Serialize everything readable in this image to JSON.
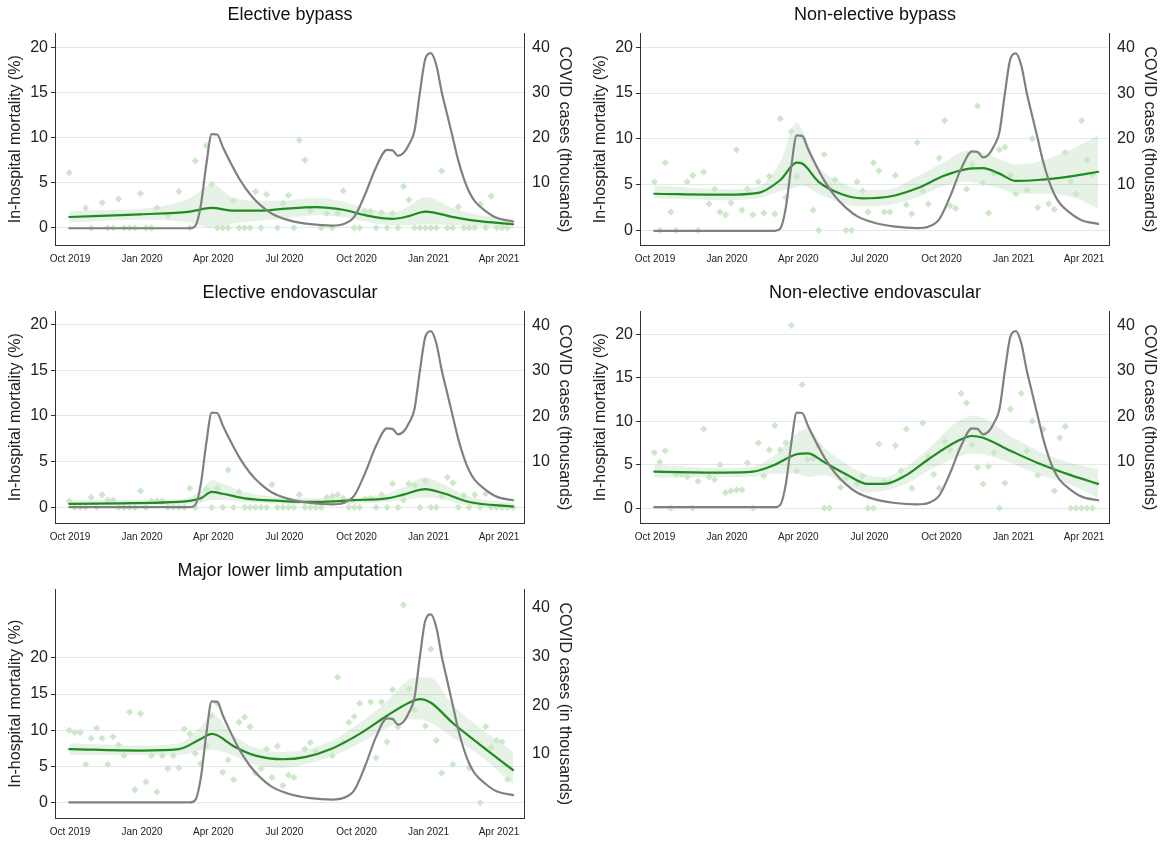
{
  "chart_data": [
    {
      "type": "line",
      "title": "Elective bypass",
      "ylabel": "In-hospital mortality (%)",
      "y2label": "COVID cases (thousands)",
      "grid": "y",
      "xlim": [
        "2019-09-13",
        "2021-05-03"
      ],
      "xticks": [
        {
          "value": "2019-10-01",
          "label": "Oct 2019"
        },
        {
          "value": "2020-01-01",
          "label": "Jan 2020"
        },
        {
          "value": "2020-04-01",
          "label": "Apr 2020"
        },
        {
          "value": "2020-07-01",
          "label": "Jul 2020"
        },
        {
          "value": "2020-10-01",
          "label": "Oct 2020"
        },
        {
          "value": "2021-01-01",
          "label": "Jan 2021"
        },
        {
          "value": "2021-04-01",
          "label": "Apr 2021"
        }
      ],
      "ylim": [
        -1.9,
        21.5
      ],
      "yticks": [
        0,
        5,
        10,
        15,
        20
      ],
      "y2lim": [
        -3.7,
        43
      ],
      "y2ticks": [
        10,
        20,
        30,
        40
      ],
      "series": [
        {
          "type": "scatter",
          "color": "#cde8c9",
          "marker": "diamond",
          "x": [
            "2019-09-30",
            "2019-10-21",
            "2019-10-28",
            "2019-11-11",
            "2019-11-18",
            "2019-11-25",
            "2019-12-02",
            "2019-12-09",
            "2019-12-16",
            "2019-12-23",
            "2019-12-30",
            "2020-01-06",
            "2020-01-13",
            "2020-01-20",
            "2020-02-03",
            "2020-02-17",
            "2020-03-02",
            "2020-03-09",
            "2020-03-23",
            "2020-03-30",
            "2020-04-06",
            "2020-04-13",
            "2020-04-20",
            "2020-04-27",
            "2020-05-04",
            "2020-05-11",
            "2020-05-18",
            "2020-05-25",
            "2020-06-01",
            "2020-06-08",
            "2020-06-22",
            "2020-06-29",
            "2020-07-06",
            "2020-07-13",
            "2020-07-20",
            "2020-07-27",
            "2020-08-03",
            "2020-08-17",
            "2020-08-24",
            "2020-08-31",
            "2020-09-07",
            "2020-09-14",
            "2020-09-28",
            "2020-10-05",
            "2020-10-12",
            "2020-10-19",
            "2020-10-26",
            "2020-11-02",
            "2020-11-09",
            "2020-11-16",
            "2020-11-23",
            "2020-11-30",
            "2020-12-07",
            "2020-12-14",
            "2020-12-21",
            "2020-12-28",
            "2021-01-04",
            "2021-01-11",
            "2021-01-18",
            "2021-01-25",
            "2021-02-01",
            "2021-02-08",
            "2021-02-15",
            "2021-02-22",
            "2021-03-01",
            "2021-03-08",
            "2021-03-15",
            "2021-03-22",
            "2021-03-29",
            "2021-04-05",
            "2021-04-12"
          ],
          "values": [
            6.1,
            2.2,
            0,
            2.8,
            0,
            0,
            3.2,
            0,
            0,
            0,
            3.8,
            0,
            0,
            2.2,
            1.4,
            4.0,
            0,
            7.4,
            9.1,
            4.8,
            0,
            0,
            0,
            3.0,
            0,
            0,
            0,
            4.0,
            0,
            3.7,
            0,
            2.7,
            3.6,
            0,
            9.7,
            7.5,
            1.9,
            0,
            1.6,
            0,
            1.6,
            4.1,
            0,
            0,
            1.8,
            1.8,
            0,
            1.7,
            0,
            1.6,
            0,
            4.6,
            3.1,
            0,
            0,
            0,
            0,
            0,
            6.3,
            0,
            0,
            2.3,
            0,
            0,
            0,
            2.6,
            0,
            3.5,
            0,
            0,
            0
          ]
        },
        {
          "color": "#1e8c1e",
          "x": [
            "2019-09-30",
            "2019-12-30",
            "2020-03-02",
            "2020-03-30",
            "2020-04-27",
            "2020-06-01",
            "2020-06-29",
            "2020-08-10",
            "2020-09-14",
            "2020-10-12",
            "2020-11-16",
            "2020-12-07",
            "2020-12-28",
            "2021-02-01",
            "2021-03-01",
            "2021-04-19"
          ],
          "values": [
            1.2,
            1.5,
            1.8,
            2.2,
            1.9,
            1.9,
            2.1,
            2.3,
            2.0,
            1.4,
            1.0,
            1.3,
            1.8,
            1.2,
            0.8,
            0.4
          ],
          "lower": [
            0.6,
            0.9,
            0.6,
            0,
            0.5,
            0.8,
            1.0,
            1.4,
            1.2,
            0.7,
            0.3,
            0.3,
            0.4,
            0.3,
            0.2,
            0
          ],
          "upper": [
            1.9,
            2.1,
            3.3,
            4.8,
            3.3,
            3.0,
            3.0,
            3.3,
            2.9,
            2.2,
            1.7,
            2.4,
            3.4,
            2.2,
            1.5,
            1.0
          ]
        },
        {
          "type": "line",
          "axis": "y2",
          "color": "#808080",
          "x": [
            "2019-09-30",
            "2020-03-02",
            "2020-03-09",
            "2020-03-16",
            "2020-03-23",
            "2020-03-30",
            "2020-04-06",
            "2020-04-13",
            "2020-04-20",
            "2020-05-04",
            "2020-05-18",
            "2020-06-01",
            "2020-06-15",
            "2020-07-06",
            "2020-08-03",
            "2020-08-31",
            "2020-09-14",
            "2020-09-28",
            "2020-10-12",
            "2020-10-26",
            "2020-11-09",
            "2020-11-16",
            "2020-11-23",
            "2020-11-30",
            "2020-12-07",
            "2020-12-14",
            "2020-12-21",
            "2020-12-28",
            "2021-01-04",
            "2021-01-11",
            "2021-01-18",
            "2021-01-25",
            "2021-02-01",
            "2021-02-08",
            "2021-02-15",
            "2021-02-22",
            "2021-03-01",
            "2021-03-15",
            "2021-03-29",
            "2021-04-19"
          ],
          "values": [
            0,
            0,
            0.5,
            5,
            14,
            20.8,
            20.7,
            18,
            15.5,
            11,
            7.5,
            5,
            3.2,
            1.8,
            0.9,
            0.6,
            0.9,
            2.5,
            7.5,
            13.5,
            17.3,
            17.2,
            16,
            16.6,
            18.5,
            21.5,
            30,
            37.5,
            38.7,
            36,
            30,
            25,
            20,
            15,
            11,
            8,
            6,
            3.8,
            2.3,
            1.5
          ]
        }
      ]
    },
    {
      "type": "line",
      "title": "Non-elective bypass",
      "ylabel": "In-hospital mortality (%)",
      "y2label": "COVID cases (thousands)",
      "grid": "y",
      "xlim": [
        "2019-09-13",
        "2021-05-03"
      ],
      "xticks": [
        {
          "value": "2019-10-01",
          "label": "Oct 2019"
        },
        {
          "value": "2020-01-01",
          "label": "Jan 2020"
        },
        {
          "value": "2020-04-01",
          "label": "Apr 2020"
        },
        {
          "value": "2020-07-01",
          "label": "Jul 2020"
        },
        {
          "value": "2020-10-01",
          "label": "Oct 2020"
        },
        {
          "value": "2021-01-01",
          "label": "Jan 2021"
        },
        {
          "value": "2021-04-01",
          "label": "Apr 2021"
        }
      ],
      "ylim": [
        -1.6,
        21.5
      ],
      "yticks": [
        0,
        5,
        10,
        15,
        20
      ],
      "y2lim": [
        -3.1,
        43
      ],
      "y2ticks": [
        10,
        20,
        30,
        40
      ],
      "series": [
        {
          "type": "scatter",
          "color": "#cde8c9",
          "marker": "diamond",
          "x": [
            "2019-09-30",
            "2019-10-07",
            "2019-10-14",
            "2019-10-21",
            "2019-10-28",
            "2019-11-11",
            "2019-11-18",
            "2019-11-25",
            "2019-12-02",
            "2019-12-09",
            "2019-12-16",
            "2019-12-23",
            "2019-12-30",
            "2020-01-06",
            "2020-01-13",
            "2020-01-20",
            "2020-01-27",
            "2020-02-03",
            "2020-02-10",
            "2020-02-17",
            "2020-02-24",
            "2020-03-02",
            "2020-03-09",
            "2020-03-16",
            "2020-03-23",
            "2020-03-30",
            "2020-04-20",
            "2020-04-27",
            "2020-05-04",
            "2020-05-11",
            "2020-05-18",
            "2020-06-01",
            "2020-06-08",
            "2020-06-15",
            "2020-06-22",
            "2020-06-29",
            "2020-07-06",
            "2020-07-13",
            "2020-07-20",
            "2020-07-27",
            "2020-08-03",
            "2020-08-17",
            "2020-08-24",
            "2020-08-31",
            "2020-09-07",
            "2020-09-14",
            "2020-09-28",
            "2020-10-05",
            "2020-10-12",
            "2020-10-19",
            "2020-11-02",
            "2020-11-09",
            "2020-11-16",
            "2020-11-23",
            "2020-11-30",
            "2020-12-07",
            "2020-12-14",
            "2020-12-21",
            "2020-12-28",
            "2021-01-04",
            "2021-01-18",
            "2021-01-25",
            "2021-02-01",
            "2021-02-15",
            "2021-02-22",
            "2021-03-08",
            "2021-03-15",
            "2021-03-22",
            "2021-03-29",
            "2021-04-05",
            "2021-04-12"
          ],
          "values": [
            5.3,
            0,
            7.4,
            2.0,
            0,
            5.3,
            6.0,
            0,
            6.4,
            2.9,
            4.5,
            2.0,
            1.7,
            3.0,
            8.8,
            2.2,
            4.5,
            1.7,
            5.3,
            1.9,
            5.9,
            1.8,
            12.2,
            3.6,
            10.8,
            5.9,
            2.2,
            0,
            8.3,
            4.7,
            5.5,
            0,
            0,
            5.3,
            4.3,
            2.0,
            7.4,
            6.5,
            2.0,
            2.0,
            6.0,
            2.8,
            1.8,
            9.6,
            4.3,
            2.9,
            7.9,
            12.0,
            2.7,
            2.4,
            4.5,
            7.2,
            13.6,
            5.2,
            1.9,
            6.2,
            8.8,
            9.1,
            6.0,
            4.0,
            4.4,
            10.0,
            2.5,
            2.9,
            2.3,
            8.5,
            5.4,
            4.0,
            12.0,
            7.7,
            6.1
          ]
        },
        {
          "color": "#1e8c1e",
          "x": [
            "2019-09-30",
            "2019-12-30",
            "2020-02-10",
            "2020-03-09",
            "2020-03-30",
            "2020-04-06",
            "2020-04-27",
            "2020-05-25",
            "2020-06-22",
            "2020-07-27",
            "2020-08-31",
            "2020-10-05",
            "2020-11-02",
            "2020-11-23",
            "2020-12-14",
            "2021-01-04",
            "2021-02-01",
            "2021-03-15",
            "2021-04-19"
          ],
          "values": [
            4.0,
            3.9,
            4.1,
            5.5,
            7.4,
            7.3,
            5.3,
            4.0,
            3.5,
            3.7,
            4.6,
            6.0,
            6.7,
            6.8,
            6.2,
            5.4,
            5.5,
            5.9,
            6.4
          ],
          "lower": [
            3.5,
            3.3,
            3.5,
            4.3,
            4.7,
            4.9,
            4.0,
            3.0,
            2.6,
            2.8,
            3.6,
            4.9,
            5.3,
            5.0,
            4.6,
            4.0,
            4.0,
            3.7,
            2.4
          ],
          "upper": [
            4.9,
            4.5,
            4.8,
            7.5,
            11.8,
            11.0,
            7.0,
            5.3,
            4.4,
            4.5,
            5.9,
            7.5,
            8.7,
            8.5,
            7.8,
            7.2,
            7.5,
            8.8,
            10.4
          ]
        },
        {
          "type": "line",
          "axis": "y2",
          "color": "#808080",
          "x": [
            "2019-09-30",
            "2020-03-02",
            "2020-03-09",
            "2020-03-16",
            "2020-03-23",
            "2020-03-30",
            "2020-04-06",
            "2020-04-13",
            "2020-04-20",
            "2020-05-04",
            "2020-05-18",
            "2020-06-01",
            "2020-06-15",
            "2020-07-06",
            "2020-08-03",
            "2020-08-31",
            "2020-09-14",
            "2020-09-28",
            "2020-10-12",
            "2020-10-26",
            "2020-11-09",
            "2020-11-16",
            "2020-11-23",
            "2020-11-30",
            "2020-12-07",
            "2020-12-14",
            "2020-12-21",
            "2020-12-28",
            "2021-01-04",
            "2021-01-11",
            "2021-01-18",
            "2021-01-25",
            "2021-02-01",
            "2021-02-08",
            "2021-02-15",
            "2021-02-22",
            "2021-03-01",
            "2021-03-15",
            "2021-03-29",
            "2021-04-19"
          ],
          "values": [
            0,
            0,
            0.5,
            5,
            14,
            20.8,
            20.7,
            18,
            15.5,
            11,
            7.5,
            5,
            3.2,
            1.8,
            0.9,
            0.6,
            0.9,
            2.5,
            7.5,
            13.5,
            17.3,
            17.2,
            16,
            16.6,
            18.5,
            21.5,
            30,
            37.5,
            38.7,
            36,
            30,
            25,
            20,
            15,
            11,
            8,
            6,
            3.8,
            2.3,
            1.5
          ]
        }
      ]
    },
    {
      "type": "line",
      "title": "Elective endovascular",
      "ylabel": "In-hospital mortality (%)",
      "y2label": "COVID cases (thousands)",
      "grid": "y",
      "xlim": [
        "2019-09-13",
        "2021-05-03"
      ],
      "xticks": [
        {
          "value": "2019-10-01",
          "label": "Oct 2019"
        },
        {
          "value": "2020-01-01",
          "label": "Jan 2020"
        },
        {
          "value": "2020-04-01",
          "label": "Apr 2020"
        },
        {
          "value": "2020-07-01",
          "label": "Jul 2020"
        },
        {
          "value": "2020-10-01",
          "label": "Oct 2020"
        },
        {
          "value": "2021-01-01",
          "label": "Jan 2021"
        },
        {
          "value": "2021-04-01",
          "label": "Apr 2021"
        }
      ],
      "ylim": [
        -1.7,
        21.4
      ],
      "yticks": [
        0,
        5,
        10,
        15,
        20
      ],
      "y2lim": [
        -3.5,
        43
      ],
      "y2ticks": [
        10,
        20,
        30,
        40
      ],
      "series": [
        {
          "type": "scatter",
          "color": "#cde8c9",
          "marker": "diamond",
          "x": [
            "2019-09-30",
            "2019-10-07",
            "2019-10-14",
            "2019-10-21",
            "2019-10-28",
            "2019-11-04",
            "2019-11-11",
            "2019-11-18",
            "2019-11-25",
            "2019-12-02",
            "2019-12-09",
            "2019-12-16",
            "2019-12-23",
            "2019-12-30",
            "2020-01-06",
            "2020-01-13",
            "2020-01-20",
            "2020-01-27",
            "2020-02-03",
            "2020-02-10",
            "2020-02-17",
            "2020-02-24",
            "2020-03-02",
            "2020-03-09",
            "2020-03-16",
            "2020-03-23",
            "2020-03-30",
            "2020-04-06",
            "2020-04-13",
            "2020-04-20",
            "2020-04-27",
            "2020-05-04",
            "2020-05-11",
            "2020-05-18",
            "2020-05-25",
            "2020-06-01",
            "2020-06-08",
            "2020-06-15",
            "2020-06-22",
            "2020-06-29",
            "2020-07-06",
            "2020-07-13",
            "2020-07-20",
            "2020-07-27",
            "2020-08-03",
            "2020-08-10",
            "2020-08-17",
            "2020-08-24",
            "2020-08-31",
            "2020-09-07",
            "2020-09-14",
            "2020-09-21",
            "2020-09-28",
            "2020-10-05",
            "2020-10-12",
            "2020-10-19",
            "2020-10-26",
            "2020-11-02",
            "2020-11-09",
            "2020-11-16",
            "2020-11-23",
            "2020-11-30",
            "2020-12-07",
            "2020-12-14",
            "2020-12-21",
            "2020-12-28",
            "2021-01-04",
            "2021-01-11",
            "2021-01-18",
            "2021-01-25",
            "2021-02-01",
            "2021-02-08",
            "2021-02-15",
            "2021-02-22",
            "2021-03-01",
            "2021-03-08",
            "2021-03-15",
            "2021-03-22",
            "2021-03-29",
            "2021-04-05",
            "2021-04-12",
            "2021-04-19"
          ],
          "values": [
            0.7,
            0,
            0,
            0,
            1.1,
            0,
            1.4,
            0.8,
            0.8,
            0,
            0,
            0,
            0,
            1.8,
            0,
            0.7,
            0.7,
            0.7,
            0,
            0,
            0,
            0,
            2.1,
            0,
            1.0,
            2.0,
            0,
            2.1,
            0,
            4.1,
            0,
            1.7,
            0,
            0,
            0,
            0,
            0,
            2.5,
            0,
            0,
            0,
            0,
            1.4,
            0,
            0,
            0,
            0,
            1.1,
            1.2,
            1.4,
            1.0,
            0,
            0,
            0,
            0.9,
            1.0,
            0,
            1.4,
            0,
            2.6,
            0,
            0.8,
            2.6,
            2.4,
            0,
            2.9,
            0,
            0,
            1.2,
            3.3,
            2.7,
            0,
            1.3,
            0,
            1.4,
            0,
            1.5,
            0,
            0,
            0,
            0,
            0
          ]
        },
        {
          "color": "#1e8c1e",
          "x": [
            "2019-09-30",
            "2020-02-17",
            "2020-03-16",
            "2020-03-30",
            "2020-04-13",
            "2020-05-11",
            "2020-06-29",
            "2020-08-10",
            "2020-09-28",
            "2020-11-09",
            "2020-11-30",
            "2020-12-28",
            "2021-01-18",
            "2021-02-22",
            "2021-04-19"
          ],
          "values": [
            0.4,
            0.6,
            1.0,
            1.7,
            1.5,
            1.0,
            0.7,
            0.6,
            0.8,
            1.0,
            1.4,
            2.0,
            1.6,
            0.6,
            0.1
          ],
          "lower": [
            0.2,
            0.3,
            0.5,
            0.8,
            0.8,
            0.6,
            0.4,
            0.3,
            0.4,
            0.6,
            0.8,
            1.1,
            0.9,
            0.2,
            0
          ],
          "upper": [
            0.8,
            0.9,
            1.8,
            3.0,
            2.6,
            1.7,
            1.1,
            1.0,
            1.1,
            1.5,
            2.2,
            3.3,
            2.6,
            1.2,
            0.5
          ]
        },
        {
          "type": "line",
          "axis": "y2",
          "color": "#808080",
          "x": [
            "2019-09-30",
            "2020-03-02",
            "2020-03-09",
            "2020-03-16",
            "2020-03-23",
            "2020-03-30",
            "2020-04-06",
            "2020-04-13",
            "2020-04-20",
            "2020-05-04",
            "2020-05-18",
            "2020-06-01",
            "2020-06-15",
            "2020-07-06",
            "2020-08-03",
            "2020-08-31",
            "2020-09-14",
            "2020-09-28",
            "2020-10-12",
            "2020-10-26",
            "2020-11-09",
            "2020-11-16",
            "2020-11-23",
            "2020-11-30",
            "2020-12-07",
            "2020-12-14",
            "2020-12-21",
            "2020-12-28",
            "2021-01-04",
            "2021-01-11",
            "2021-01-18",
            "2021-01-25",
            "2021-02-01",
            "2021-02-08",
            "2021-02-15",
            "2021-02-22",
            "2021-03-01",
            "2021-03-15",
            "2021-03-29",
            "2021-04-19"
          ],
          "values": [
            0,
            0,
            0.5,
            5,
            14,
            20.8,
            20.7,
            18,
            15.5,
            11,
            7.5,
            5,
            3.2,
            1.8,
            0.9,
            0.6,
            0.9,
            2.5,
            7.5,
            13.5,
            17.3,
            17.2,
            16,
            16.6,
            18.5,
            21.5,
            30,
            37.5,
            38.7,
            36,
            30,
            25,
            20,
            15,
            11,
            8,
            6,
            3.8,
            2.3,
            1.5
          ]
        }
      ]
    },
    {
      "type": "line",
      "title": "Non-elective endovascular",
      "ylabel": "In-hospital mortality (%)",
      "y2label": "COVID cases (thousands)",
      "grid": "y",
      "xlim": [
        "2019-09-13",
        "2021-05-03"
      ],
      "xticks": [
        {
          "value": "2019-10-01",
          "label": "Oct 2019"
        },
        {
          "value": "2020-01-01",
          "label": "Jan 2020"
        },
        {
          "value": "2020-04-01",
          "label": "Apr 2020"
        },
        {
          "value": "2020-07-01",
          "label": "Jul 2020"
        },
        {
          "value": "2020-10-01",
          "label": "Oct 2020"
        },
        {
          "value": "2021-01-01",
          "label": "Jan 2021"
        },
        {
          "value": "2021-04-01",
          "label": "Apr 2021"
        }
      ],
      "ylim": [
        -1.7,
        22.6
      ],
      "yticks": [
        0,
        5,
        10,
        15,
        20
      ],
      "y2lim": [
        -3.5,
        43
      ],
      "y2ticks": [
        10,
        20,
        30,
        40
      ],
      "series": [
        {
          "type": "scatter",
          "color": "#cde8c9",
          "marker": "diamond",
          "x": [
            "2019-09-30",
            "2019-10-07",
            "2019-10-14",
            "2019-10-21",
            "2019-10-28",
            "2019-11-04",
            "2019-11-11",
            "2019-11-18",
            "2019-11-25",
            "2019-12-02",
            "2019-12-09",
            "2019-12-16",
            "2019-12-23",
            "2019-12-30",
            "2020-01-06",
            "2020-01-13",
            "2020-01-20",
            "2020-01-27",
            "2020-02-03",
            "2020-02-10",
            "2020-02-17",
            "2020-02-24",
            "2020-03-02",
            "2020-03-09",
            "2020-03-16",
            "2020-03-23",
            "2020-03-30",
            "2020-04-06",
            "2020-04-13",
            "2020-04-20",
            "2020-04-27",
            "2020-05-04",
            "2020-05-11",
            "2020-05-25",
            "2020-06-01",
            "2020-06-15",
            "2020-06-22",
            "2020-06-29",
            "2020-07-06",
            "2020-07-13",
            "2020-07-20",
            "2020-07-27",
            "2020-08-03",
            "2020-08-10",
            "2020-08-17",
            "2020-08-24",
            "2020-09-07",
            "2020-09-14",
            "2020-09-21",
            "2020-09-28",
            "2020-10-05",
            "2020-10-12",
            "2020-10-26",
            "2020-11-02",
            "2020-11-09",
            "2020-11-16",
            "2020-11-23",
            "2020-11-30",
            "2020-12-07",
            "2020-12-14",
            "2020-12-21",
            "2020-12-28",
            "2021-01-11",
            "2021-01-18",
            "2021-01-25",
            "2021-02-01",
            "2021-02-08",
            "2021-02-22",
            "2021-03-01",
            "2021-03-08",
            "2021-03-15",
            "2021-03-22",
            "2021-03-29",
            "2021-04-05",
            "2021-04-12"
          ],
          "values": [
            6.4,
            5.3,
            6.6,
            0,
            3.9,
            3.9,
            3.6,
            0,
            3.1,
            9.1,
            3.6,
            3.3,
            5.0,
            1.8,
            2.0,
            2.1,
            2.1,
            5.2,
            0,
            7.5,
            3.7,
            6.7,
            9.5,
            6.7,
            7.5,
            21.0,
            4.3,
            14.2,
            5.6,
            5.7,
            7.1,
            0,
            0,
            2.4,
            3.5,
            2.8,
            3.7,
            0,
            0,
            7.4,
            3.0,
            3.0,
            7.2,
            4.3,
            9.1,
            2.3,
            9.8,
            5.9,
            3.9,
            2.3,
            7.7,
            6.7,
            13.2,
            12.1,
            7.3,
            4.7,
            2.8,
            4.8,
            6.4,
            0,
            2.9,
            11.4,
            13.2,
            6.6,
            10.0,
            3.8,
            9.1,
            2.0,
            8.1,
            9.4,
            0,
            0,
            0,
            0,
            0
          ]
        },
        {
          "color": "#1e8c1e",
          "x": [
            "2019-09-30",
            "2019-12-30",
            "2020-02-03",
            "2020-03-02",
            "2020-03-30",
            "2020-04-13",
            "2020-05-04",
            "2020-06-01",
            "2020-06-29",
            "2020-07-20",
            "2020-08-17",
            "2020-09-14",
            "2020-10-19",
            "2020-11-09",
            "2020-11-23",
            "2020-12-28",
            "2021-02-01",
            "2021-03-15",
            "2021-04-19"
          ],
          "values": [
            4.2,
            4.1,
            4.2,
            5.0,
            6.2,
            6.3,
            5.3,
            3.9,
            2.8,
            2.8,
            3.8,
            5.6,
            7.6,
            8.3,
            8.1,
            6.6,
            5.2,
            3.8,
            2.8
          ],
          "lower": [
            3.5,
            3.6,
            3.6,
            4.0,
            4.0,
            3.6,
            3.8,
            2.7,
            1.8,
            2.0,
            2.8,
            4.3,
            5.8,
            6.3,
            6.2,
            5.2,
            3.9,
            2.7,
            1.2
          ],
          "upper": [
            5.0,
            4.6,
            4.8,
            6.1,
            8.6,
            9.2,
            7.0,
            5.1,
            3.8,
            3.6,
            4.8,
            6.8,
            9.8,
            10.6,
            10.4,
            8.3,
            6.6,
            5.2,
            4.5
          ]
        },
        {
          "type": "line",
          "axis": "y2",
          "color": "#808080",
          "x": [
            "2019-09-30",
            "2020-03-02",
            "2020-03-09",
            "2020-03-16",
            "2020-03-23",
            "2020-03-30",
            "2020-04-06",
            "2020-04-13",
            "2020-04-20",
            "2020-05-04",
            "2020-05-18",
            "2020-06-01",
            "2020-06-15",
            "2020-07-06",
            "2020-08-03",
            "2020-08-31",
            "2020-09-14",
            "2020-09-28",
            "2020-10-12",
            "2020-10-26",
            "2020-11-09",
            "2020-11-16",
            "2020-11-23",
            "2020-11-30",
            "2020-12-07",
            "2020-12-14",
            "2020-12-21",
            "2020-12-28",
            "2021-01-04",
            "2021-01-11",
            "2021-01-18",
            "2021-01-25",
            "2021-02-01",
            "2021-02-08",
            "2021-02-15",
            "2021-02-22",
            "2021-03-01",
            "2021-03-15",
            "2021-03-29",
            "2021-04-19"
          ],
          "values": [
            0,
            0,
            0.5,
            5,
            14,
            20.8,
            20.7,
            18,
            15.5,
            11,
            7.5,
            5,
            3.2,
            1.8,
            0.9,
            0.6,
            0.9,
            2.5,
            7.5,
            13.5,
            17.3,
            17.2,
            16,
            16.6,
            18.5,
            21.5,
            30,
            37.5,
            38.7,
            36,
            30,
            25,
            20,
            15,
            11,
            8,
            6,
            3.8,
            2.3,
            1.5
          ]
        }
      ]
    },
    {
      "type": "line",
      "title": "Major lower limb amputation",
      "ylabel": "In-hospital mortality (%)",
      "y2label": "COVID cases (in thousands)",
      "grid": "y",
      "xlim": [
        "2019-09-13",
        "2021-05-03"
      ],
      "xticks": [
        {
          "value": "2019-10-01",
          "label": "Oct 2019"
        },
        {
          "value": "2020-01-01",
          "label": "Jan 2020"
        },
        {
          "value": "2020-04-01",
          "label": "Apr 2020"
        },
        {
          "value": "2020-07-01",
          "label": "Jul 2020"
        },
        {
          "value": "2020-10-01",
          "label": "Oct 2020"
        },
        {
          "value": "2021-01-01",
          "label": "Jan 2021"
        },
        {
          "value": "2021-04-01",
          "label": "Apr 2021"
        }
      ],
      "ylim": [
        -2.1,
        29.4
      ],
      "yticks": [
        0,
        5,
        10,
        15,
        20
      ],
      "y2lim": [
        -3.2,
        43.8
      ],
      "y2ticks": [
        10,
        20,
        30,
        40
      ],
      "series": [
        {
          "type": "scatter",
          "color": "#cde8c9",
          "marker": "diamond",
          "x": [
            "2019-09-30",
            "2019-10-07",
            "2019-10-14",
            "2019-10-21",
            "2019-10-28",
            "2019-11-04",
            "2019-11-11",
            "2019-11-18",
            "2019-11-25",
            "2019-12-02",
            "2019-12-09",
            "2019-12-16",
            "2019-12-23",
            "2019-12-30",
            "2020-01-06",
            "2020-01-13",
            "2020-01-20",
            "2020-01-27",
            "2020-02-03",
            "2020-02-10",
            "2020-02-17",
            "2020-02-24",
            "2020-03-02",
            "2020-03-09",
            "2020-03-16",
            "2020-03-23",
            "2020-03-30",
            "2020-04-06",
            "2020-04-13",
            "2020-04-20",
            "2020-04-27",
            "2020-05-04",
            "2020-05-11",
            "2020-05-18",
            "2020-05-25",
            "2020-06-01",
            "2020-06-08",
            "2020-06-15",
            "2020-06-22",
            "2020-06-29",
            "2020-07-06",
            "2020-07-13",
            "2020-07-27",
            "2020-08-03",
            "2020-08-10",
            "2020-08-31",
            "2020-09-07",
            "2020-09-14",
            "2020-09-21",
            "2020-09-28",
            "2020-10-05",
            "2020-10-19",
            "2020-10-26",
            "2020-11-02",
            "2020-11-09",
            "2020-11-16",
            "2020-11-23",
            "2020-11-30",
            "2020-12-07",
            "2020-12-14",
            "2020-12-28",
            "2021-01-04",
            "2021-01-11",
            "2021-01-18",
            "2021-02-01",
            "2021-02-08",
            "2021-02-22",
            "2021-03-08",
            "2021-03-15",
            "2021-03-22",
            "2021-03-29",
            "2021-04-05",
            "2021-04-12"
          ],
          "values": [
            10.0,
            9.7,
            9.7,
            5.3,
            8.9,
            10.3,
            8.9,
            5.3,
            9.1,
            8.0,
            6.5,
            12.5,
            1.8,
            12.3,
            2.9,
            6.5,
            1.5,
            6.5,
            4.7,
            6.5,
            4.8,
            10.2,
            9.5,
            6.8,
            5.4,
            7.9,
            12.0,
            13.7,
            4.2,
            5.9,
            3.2,
            11.1,
            11.8,
            10.5,
            4.1,
            4.7,
            7.4,
            3.5,
            7.8,
            2.4,
            3.8,
            3.5,
            7.4,
            8.3,
            7.1,
            6.5,
            17.3,
            8.3,
            11.1,
            11.9,
            13.7,
            13.9,
            6.2,
            13.9,
            8.4,
            15.6,
            10.5,
            27.3,
            15.7,
            12.8,
            10.6,
            21.2,
            8.6,
            4.1,
            5.3,
            10.2,
            4.8,
            0,
            10.5,
            7.6,
            8.6,
            8.4,
            3.2
          ]
        },
        {
          "color": "#1e8c1e",
          "x": [
            "2019-09-30",
            "2019-12-30",
            "2020-02-17",
            "2020-03-16",
            "2020-03-30",
            "2020-04-06",
            "2020-04-27",
            "2020-05-25",
            "2020-06-29",
            "2020-07-27",
            "2020-08-31",
            "2020-10-05",
            "2020-11-09",
            "2020-12-07",
            "2020-12-21",
            "2021-01-04",
            "2021-02-01",
            "2021-03-08",
            "2021-04-19"
          ],
          "values": [
            7.4,
            7.2,
            7.4,
            8.8,
            9.5,
            9.3,
            7.8,
            6.5,
            6.0,
            6.3,
            7.5,
            9.5,
            12.0,
            13.8,
            14.3,
            13.8,
            11.0,
            8.0,
            4.5
          ],
          "lower": [
            6.6,
            6.6,
            6.6,
            7.2,
            7.3,
            7.2,
            6.5,
            5.2,
            4.8,
            5.3,
            6.4,
            8.2,
            10.3,
            11.5,
            11.5,
            11.0,
            9.0,
            6.5,
            2.5
          ],
          "upper": [
            8.2,
            7.9,
            8.2,
            10.5,
            12.0,
            11.8,
            9.3,
            7.6,
            7.0,
            7.3,
            8.6,
            11.0,
            14.0,
            17.0,
            17.3,
            17.2,
            13.5,
            10.3,
            7.0
          ]
        },
        {
          "type": "line",
          "axis": "y2",
          "color": "#808080",
          "x": [
            "2019-09-30",
            "2020-03-02",
            "2020-03-09",
            "2020-03-16",
            "2020-03-23",
            "2020-03-30",
            "2020-04-06",
            "2020-04-13",
            "2020-04-20",
            "2020-05-04",
            "2020-05-18",
            "2020-06-01",
            "2020-06-15",
            "2020-07-06",
            "2020-08-03",
            "2020-08-31",
            "2020-09-14",
            "2020-09-28",
            "2020-10-12",
            "2020-10-26",
            "2020-11-09",
            "2020-11-16",
            "2020-11-23",
            "2020-11-30",
            "2020-12-07",
            "2020-12-14",
            "2020-12-21",
            "2020-12-28",
            "2021-01-04",
            "2021-01-11",
            "2021-01-18",
            "2021-01-25",
            "2021-02-01",
            "2021-02-08",
            "2021-02-15",
            "2021-02-22",
            "2021-03-01",
            "2021-03-15",
            "2021-03-29",
            "2021-04-19"
          ],
          "values": [
            0,
            0,
            0.5,
            5,
            14,
            20.8,
            20.7,
            18,
            15.5,
            11,
            7.5,
            5,
            3.2,
            1.8,
            0.9,
            0.6,
            0.9,
            2.5,
            7.5,
            13.5,
            17.3,
            17.2,
            16,
            16.6,
            18.5,
            21.5,
            30,
            37.5,
            38.7,
            36,
            30,
            25,
            20,
            15,
            11,
            8,
            6,
            3.8,
            2.3,
            1.5
          ]
        }
      ]
    }
  ]
}
